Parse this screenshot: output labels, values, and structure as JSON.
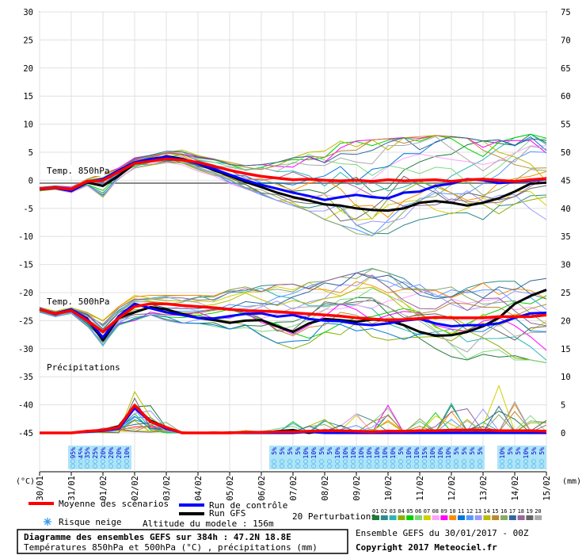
{
  "chart_data": {
    "type": "line",
    "title": "Diagramme des ensembles GEFS sur 384h : 47.2N 18.8E",
    "subtitle": "Températures 850hPa et 500hPa (°C) , précipitations (mm)",
    "left_axis_unit": "(°C)",
    "right_axis_unit": "(mm)",
    "left_ylim": [
      -45,
      30
    ],
    "left_ticks": [
      "30",
      "25",
      "20",
      "15",
      "10",
      "5",
      "0",
      "-5",
      "-10",
      "-15",
      "-20",
      "-25",
      "-30",
      "-35",
      "-40",
      "-45"
    ],
    "right_ticks": [
      "75",
      "70",
      "65",
      "60",
      "55",
      "50",
      "45",
      "40",
      "35",
      "30",
      "25",
      "20",
      "15",
      "10",
      "5",
      "0"
    ],
    "x_labels": [
      "30/01",
      "31/01",
      "01/02",
      "02/02",
      "03/02",
      "04/02",
      "05/02",
      "06/02",
      "07/02",
      "08/02",
      "09/02",
      "10/02",
      "11/02",
      "12/02",
      "13/02",
      "14/02",
      "15/02"
    ],
    "panel_labels": {
      "t850": "Temp. 850hPa",
      "t500": "Temp. 500hPa",
      "precip": "Précipitations"
    },
    "legend": {
      "mean": "Moyenne des scénarios",
      "control": "Run de contrôle",
      "gfs": "Run GFS",
      "snow": "Risque neige",
      "perturbations": "20 Perturbations",
      "altitude": "Altitude du modele : 156m"
    },
    "perturbation_ids": [
      "01",
      "02",
      "03",
      "04",
      "05",
      "06",
      "07",
      "08",
      "09",
      "10",
      "11",
      "12",
      "13",
      "14",
      "15",
      "16",
      "17",
      "18",
      "19",
      "20"
    ],
    "perturbation_colors": [
      "#1e7a3a",
      "#2e8b8b",
      "#2ab5b5",
      "#8bb000",
      "#00d000",
      "#7cd87c",
      "#d0d000",
      "#ffa0ff",
      "#ff00ff",
      "#ff8c00",
      "#0077dd",
      "#5599ff",
      "#9999ff",
      "#bbbb00",
      "#bb8833",
      "#88aa66",
      "#336699",
      "#996699",
      "#666666",
      "#aaaaaa"
    ],
    "colors": {
      "mean": "#ff0000",
      "control": "#0000ff",
      "gfs": "#000000"
    },
    "x_days": [
      0,
      0.5,
      1,
      1.5,
      2,
      2.5,
      3,
      3.5,
      4,
      4.5,
      5,
      5.5,
      6,
      6.5,
      7,
      7.5,
      8,
      8.5,
      9,
      9.5,
      10,
      10.5,
      11,
      11.5,
      12,
      12.5,
      13,
      13.5,
      14,
      14.5,
      15,
      15.5,
      16
    ],
    "series_850": {
      "mean": [
        -1.5,
        -1.3,
        -1.6,
        -0.2,
        0,
        1.5,
        3,
        3.4,
        3.8,
        3.6,
        3.2,
        2.5,
        1.8,
        1.2,
        0.7,
        0.4,
        0.1,
        0.2,
        0,
        -0.1,
        0,
        -0.2,
        0.1,
        -0.1,
        0,
        0.1,
        -0.2,
        0.1,
        0.2,
        0,
        -0.2,
        0.1,
        0.3
      ],
      "control": [
        -1.6,
        -1.4,
        -1.9,
        -0.3,
        0.2,
        1.8,
        3.2,
        3.8,
        4.2,
        3.7,
        3.0,
        2.0,
        1.0,
        0.0,
        -0.8,
        -1.5,
        -2.2,
        -2.8,
        -3.5,
        -3.0,
        -2.6,
        -3.0,
        -3.2,
        -2.2,
        -2.0,
        -1.0,
        -0.6,
        0.2,
        0.0,
        -0.5,
        -0.3,
        -0.1,
        0.2
      ],
      "gfs": [
        -1.5,
        -1.3,
        -1.9,
        -0.4,
        -1.0,
        0.8,
        3.0,
        3.5,
        4.3,
        3.8,
        3.0,
        1.8,
        0.8,
        -0.3,
        -1.2,
        -2.2,
        -3.0,
        -3.6,
        -4.3,
        -4.5,
        -5.0,
        -5.3,
        -5.4,
        -5.0,
        -4.0,
        -3.7,
        -4.0,
        -4.5,
        -4.0,
        -3.2,
        -2.0,
        -0.6,
        -0.4
      ],
      "pert_min": [
        -1.9,
        -1.6,
        -2.2,
        -1.0,
        -3.0,
        0.2,
        2.0,
        2.4,
        3.0,
        2.6,
        1.6,
        0.8,
        -0.6,
        -1.5,
        -2.6,
        -3.6,
        -4.5,
        -5.5,
        -7,
        -8,
        -9.5,
        -10.5,
        -9.5,
        -8,
        -7,
        -6.5,
        -6,
        -6.5,
        -7,
        -6.5,
        -6,
        -6.5,
        -7
      ],
      "pert_max": [
        -1.2,
        -1.0,
        -1.2,
        0.2,
        1.2,
        2.2,
        4.0,
        4.5,
        5.2,
        5.4,
        4.4,
        3.8,
        3.2,
        2.6,
        2.8,
        3.2,
        4.0,
        5.0,
        6.2,
        7.0,
        7.0,
        7.2,
        7.4,
        7.6,
        7.8,
        8.0,
        7.8,
        7.5,
        7.0,
        7.2,
        7.6,
        8.2,
        7.5
      ]
    },
    "series_500": {
      "mean": [
        -23,
        -23.8,
        -23.2,
        -25,
        -27,
        -24.5,
        -22.5,
        -22,
        -22,
        -22.3,
        -22.5,
        -22.7,
        -23,
        -23.2,
        -23.3,
        -23.4,
        -23.6,
        -23.8,
        -24,
        -24.2,
        -24.5,
        -24.7,
        -24.9,
        -24.8,
        -24.6,
        -24.4,
        -24.5,
        -24.5,
        -24.5,
        -24.3,
        -24.3,
        -24.3,
        -24
      ],
      "control": [
        -23,
        -23.7,
        -23.0,
        -24.7,
        -28,
        -24.2,
        -22.0,
        -22.8,
        -23.5,
        -24.0,
        -24.5,
        -24.6,
        -24.2,
        -23.8,
        -23.7,
        -24.3,
        -24.0,
        -24.7,
        -25.0,
        -25.1,
        -25.6,
        -25.8,
        -25.5,
        -25.0,
        -24.7,
        -25.5,
        -26.0,
        -25.8,
        -25.8,
        -25.5,
        -24.5,
        -23.7,
        -23.6
      ],
      "gfs": [
        -23,
        -23.9,
        -23.1,
        -24.6,
        -28.5,
        -24.5,
        -23.5,
        -22.6,
        -23.0,
        -23.8,
        -24.5,
        -24.9,
        -25.4,
        -25.0,
        -24.9,
        -26.0,
        -27.0,
        -25.5,
        -24.7,
        -24.9,
        -25.2,
        -24.8,
        -25.0,
        -25.8,
        -27.0,
        -27.7,
        -27.6,
        -27.0,
        -26.0,
        -24.5,
        -22.0,
        -20.6,
        -19.5
      ],
      "pert_min": [
        -23.5,
        -24.3,
        -23.7,
        -26,
        -29.5,
        -26,
        -25,
        -24,
        -25,
        -25.5,
        -25.5,
        -26,
        -26.5,
        -27,
        -28,
        -29,
        -30,
        -29.5,
        -28,
        -27.5,
        -27,
        -28,
        -28.5,
        -29,
        -29.5,
        -30,
        -31.5,
        -32,
        -31,
        -31.5,
        -32,
        -32,
        -32.5
      ],
      "pert_max": [
        -22.5,
        -23.3,
        -22.7,
        -23.5,
        -25,
        -22.5,
        -20.5,
        -20.5,
        -20.5,
        -20.5,
        -20.5,
        -20.6,
        -19.5,
        -19,
        -18.8,
        -18.6,
        -18.5,
        -18.2,
        -18.0,
        -17.2,
        -16.5,
        -15.7,
        -16.5,
        -17.5,
        -18.5,
        -19.5,
        -19.0,
        -18.6,
        -18.3,
        -18.0,
        -18.0,
        -17.8,
        -17.5
      ]
    },
    "series_precip_mm": {
      "mean": [
        0,
        0,
        0,
        0.3,
        0.5,
        1.0,
        5.0,
        2.0,
        1.0,
        0,
        0,
        0,
        0,
        0.1,
        0.1,
        0.2,
        0.2,
        0.3,
        0.4,
        0.4,
        0.3,
        0.2,
        0.3,
        0.3,
        0.4,
        0.4,
        0.5,
        0.5,
        0.5,
        0.4,
        0.4,
        0.4,
        0.3
      ],
      "control": [
        0,
        0,
        0,
        0.2,
        0.4,
        0.8,
        4.5,
        2.0,
        0.8,
        0,
        0,
        0,
        0,
        0,
        0,
        0,
        0,
        0.2,
        0,
        0,
        0,
        0,
        0,
        0,
        0,
        0,
        0,
        0,
        0,
        0,
        0,
        0,
        0
      ],
      "gfs": [
        0,
        0,
        0,
        0.3,
        0.5,
        1.2,
        4.8,
        2.2,
        1.0,
        0,
        0,
        0,
        0,
        0,
        0,
        0.3,
        0.5,
        0,
        0.4,
        0,
        0,
        0,
        0,
        0,
        0,
        0,
        0,
        0,
        0,
        0,
        0,
        0,
        0
      ],
      "pert_max": [
        0,
        0,
        0,
        0.5,
        1.0,
        2.0,
        11.0,
        5.0,
        3.0,
        0.3,
        0.2,
        0.3,
        0.3,
        0.5,
        0.6,
        1.5,
        6.5,
        1.5,
        3.5,
        1.5,
        5.0,
        2.5,
        5.0,
        2.5,
        3.0,
        4.5,
        6.5,
        4.5,
        9.0,
        10.0,
        6.0,
        3.5,
        2.5
      ]
    },
    "snow_risk_labels": [
      {
        "day": 1.05,
        "text": "95%"
      },
      {
        "day": 1.3,
        "text": "45%"
      },
      {
        "day": 1.5,
        "text": "35%"
      },
      {
        "day": 1.75,
        "text": "25%"
      },
      {
        "day": 2.0,
        "text": "20%"
      },
      {
        "day": 2.25,
        "text": "20%"
      },
      {
        "day": 2.5,
        "text": "20%"
      },
      {
        "day": 2.75,
        "text": "10%"
      },
      {
        "day": 7.4,
        "text": "5%"
      },
      {
        "day": 7.65,
        "text": "5%"
      },
      {
        "day": 7.9,
        "text": "5%"
      },
      {
        "day": 8.15,
        "text": "5%"
      },
      {
        "day": 8.4,
        "text": "10%"
      },
      {
        "day": 8.65,
        "text": "10%"
      },
      {
        "day": 8.9,
        "text": "5%"
      },
      {
        "day": 9.15,
        "text": "5%"
      },
      {
        "day": 9.4,
        "text": "10%"
      },
      {
        "day": 9.65,
        "text": "10%"
      },
      {
        "day": 9.9,
        "text": "10%"
      },
      {
        "day": 10.15,
        "text": "10%"
      },
      {
        "day": 10.4,
        "text": "10%"
      },
      {
        "day": 10.65,
        "text": "10%"
      },
      {
        "day": 10.9,
        "text": "10%"
      },
      {
        "day": 11.15,
        "text": "10%"
      },
      {
        "day": 11.4,
        "text": "5%"
      },
      {
        "day": 11.65,
        "text": "10%"
      },
      {
        "day": 11.9,
        "text": "10%"
      },
      {
        "day": 12.15,
        "text": "15%"
      },
      {
        "day": 12.4,
        "text": "10%"
      },
      {
        "day": 12.65,
        "text": "10%"
      },
      {
        "day": 12.9,
        "text": "10%"
      },
      {
        "day": 13.15,
        "text": "5%"
      },
      {
        "day": 13.4,
        "text": "5%"
      },
      {
        "day": 13.65,
        "text": "5%"
      },
      {
        "day": 13.9,
        "text": "5%"
      },
      {
        "day": 14.6,
        "text": "10%"
      },
      {
        "day": 14.85,
        "text": "5%"
      },
      {
        "day": 15.1,
        "text": "5%"
      },
      {
        "day": 15.35,
        "text": "10%"
      },
      {
        "day": 15.6,
        "text": "5%"
      },
      {
        "day": 15.85,
        "text": "5%"
      }
    ]
  },
  "footer": {
    "run_info": "Ensemble GEFS du 30/01/2017 - 00Z",
    "copyright": "Copyright 2017 Meteociel.fr"
  }
}
